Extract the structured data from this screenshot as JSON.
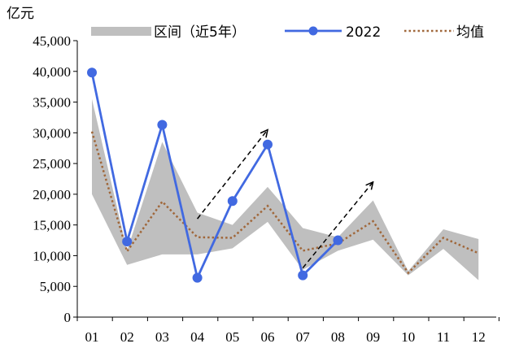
{
  "chart_data": {
    "type": "line",
    "unit_label": "亿元",
    "categories": [
      "01",
      "02",
      "03",
      "04",
      "05",
      "06",
      "07",
      "08",
      "09",
      "10",
      "11",
      "12"
    ],
    "ylim": [
      0,
      45000
    ],
    "yticks": [
      0,
      5000,
      10000,
      15000,
      20000,
      25000,
      30000,
      35000,
      40000,
      45000
    ],
    "ytick_labels": [
      "0",
      "5,000",
      "10,000",
      "15,000",
      "20,000",
      "25,000",
      "30,000",
      "35,000",
      "40,000",
      "45,000"
    ],
    "grid": false,
    "legend_position": "top",
    "band": {
      "name": "区间（近5年）",
      "color": "#bfbfbf",
      "upper": [
        35500,
        10800,
        28500,
        17000,
        15000,
        21200,
        14500,
        13000,
        19000,
        7500,
        14300,
        12700
      ],
      "lower": [
        20000,
        8500,
        10200,
        10200,
        11200,
        15500,
        7700,
        10800,
        12600,
        6800,
        11100,
        6000
      ]
    },
    "series": [
      {
        "name": "2022",
        "color": "#4169e1",
        "style": "solid-with-markers",
        "values": [
          39800,
          12300,
          31300,
          6400,
          18900,
          28100,
          6800,
          12500,
          null,
          null,
          null,
          null
        ]
      },
      {
        "name": "均值",
        "color": "#a0673a",
        "style": "dotted",
        "values": [
          30200,
          10700,
          18800,
          13000,
          12900,
          18100,
          10800,
          12000,
          15600,
          7200,
          12900,
          10400
        ]
      }
    ],
    "annotations": [
      {
        "type": "dashed-arrow",
        "from": {
          "x": "04",
          "y": 16000
        },
        "to": {
          "x": "06",
          "y": 30500
        }
      },
      {
        "type": "dashed-arrow",
        "from": {
          "x": "07",
          "y": 8000
        },
        "to": {
          "x": "09",
          "y": 22000
        }
      }
    ]
  }
}
